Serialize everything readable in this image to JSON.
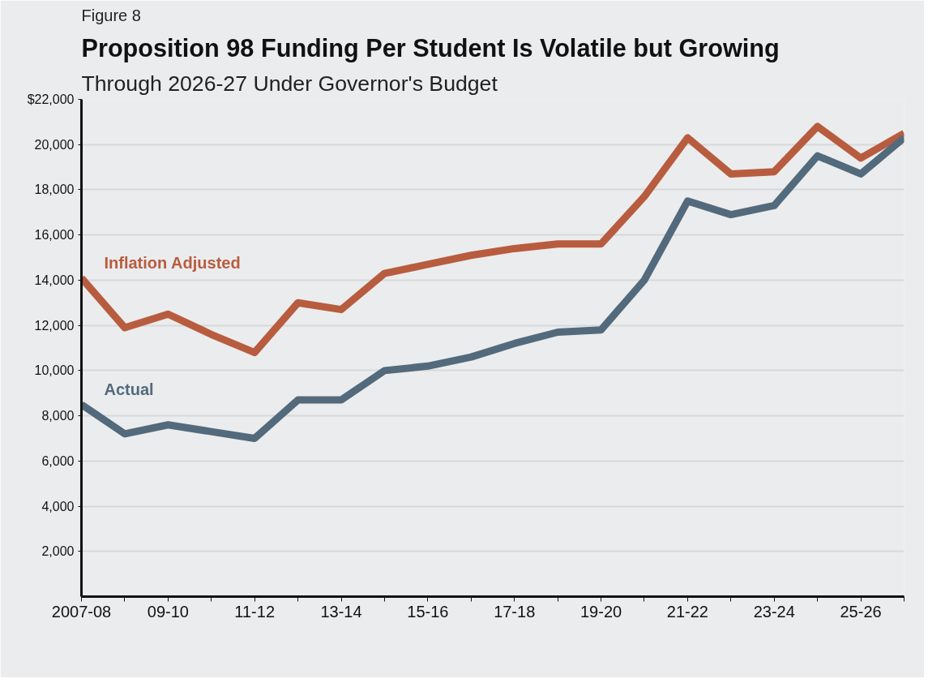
{
  "chart_data": {
    "type": "line",
    "title": "Proposition 98 Funding Per Student Is Volatile but Growing",
    "subtitle": "Through 2026-27 Under Governor's Budget",
    "annotations": [
      "Figure 8"
    ],
    "categories": [
      "2007-08",
      null,
      "09-10",
      null,
      "11-12",
      null,
      "13-14",
      null,
      "15-16",
      null,
      "17-18",
      null,
      "19-20",
      null,
      "21-22",
      null,
      "23-24",
      null,
      "25-26",
      null
    ],
    "series": [
      {
        "name": "Inflation Adjusted",
        "color": "#b85c3f",
        "values": [
          14100,
          11900,
          12500,
          11600,
          10800,
          13000,
          12700,
          14300,
          14700,
          15100,
          15400,
          15600,
          15600,
          17700,
          20300,
          18700,
          18800,
          20800,
          19400,
          20500
        ]
      },
      {
        "name": "Actual",
        "color": "#536a7c",
        "values": [
          8500,
          7200,
          7600,
          7300,
          7000,
          8700,
          8700,
          10000,
          10200,
          10600,
          11200,
          11700,
          11800,
          14000,
          17500,
          16900,
          17300,
          19500,
          18700,
          20300
        ]
      }
    ],
    "ylim": [
      0,
      22000
    ],
    "yticks": [
      {
        "value": 2000,
        "label": "2,000"
      },
      {
        "value": 4000,
        "label": "4,000"
      },
      {
        "value": 6000,
        "label": "6,000"
      },
      {
        "value": 8000,
        "label": "8,000"
      },
      {
        "value": 10000,
        "label": "10,000"
      },
      {
        "value": 12000,
        "label": "12,000"
      },
      {
        "value": 14000,
        "label": "14,000"
      },
      {
        "value": 16000,
        "label": "16,000"
      },
      {
        "value": 18000,
        "label": "18,000"
      },
      {
        "value": 20000,
        "label": "20,000"
      },
      {
        "value": 22000,
        "label": "$22,000"
      }
    ],
    "grid": "y",
    "legend": false,
    "marker": "none",
    "line_style": "solid"
  }
}
